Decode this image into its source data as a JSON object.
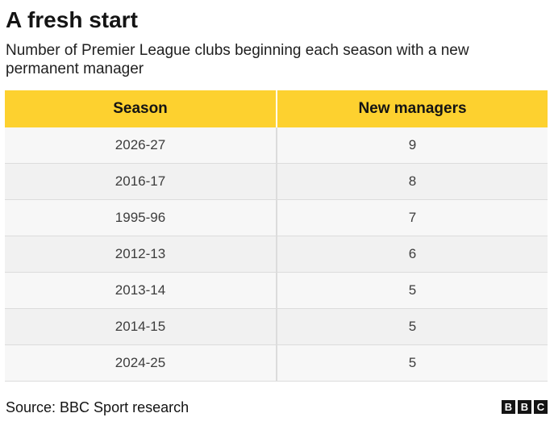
{
  "title": "A fresh start",
  "subtitle": "Number of Premier League clubs beginning each season with a new permanent manager",
  "source": "Source: BBC Sport research",
  "logo": [
    "B",
    "B",
    "C"
  ],
  "colors": {
    "header_bg": "#fdd12f",
    "row_odd": "#f7f7f7",
    "row_even": "#f1f1f1",
    "text": "#141414"
  },
  "chart_data": {
    "type": "table",
    "columns": [
      "Season",
      "New managers"
    ],
    "rows": [
      [
        "2026-27",
        "9"
      ],
      [
        "2016-17",
        "8"
      ],
      [
        "1995-96",
        "7"
      ],
      [
        "2012-13",
        "6"
      ],
      [
        "2013-14",
        "5"
      ],
      [
        "2014-15",
        "5"
      ],
      [
        "2024-25",
        "5"
      ]
    ]
  }
}
